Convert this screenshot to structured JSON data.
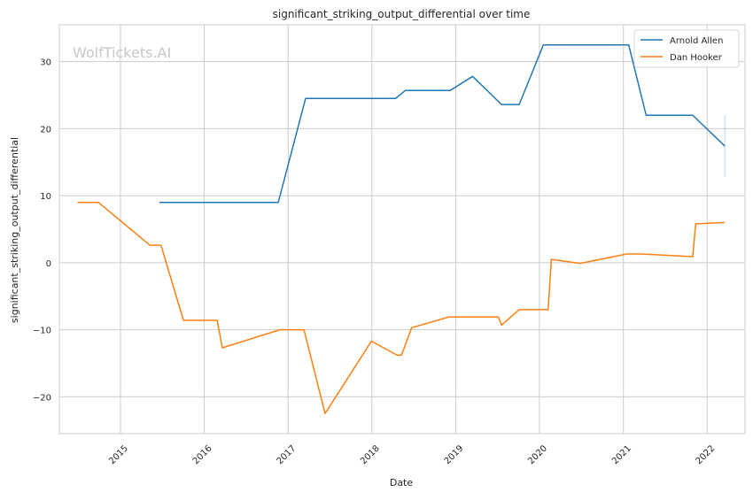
{
  "watermark": "WolfTickets.AI",
  "chart_data": {
    "type": "line",
    "title": "significant_striking_output_differential over time",
    "xlabel": "Date",
    "ylabel": "significant_striking_output_differential",
    "x_type": "date",
    "xlim": [
      "2014-04-10",
      "2022-06-15"
    ],
    "ylim": [
      -25.5,
      35.5
    ],
    "x_ticks": [
      "2015",
      "2016",
      "2017",
      "2018",
      "2019",
      "2020",
      "2021",
      "2022"
    ],
    "y_ticks": [
      -20,
      -10,
      0,
      10,
      20,
      30
    ],
    "grid": true,
    "legend": "top-right",
    "series": [
      {
        "name": "Arnold Allen",
        "color": "#1f77b4",
        "points": [
          [
            "2015-06-20",
            9.0
          ],
          [
            "2016-11-19",
            9.0
          ],
          [
            "2017-03-18",
            24.5
          ],
          [
            "2018-04-14",
            24.5
          ],
          [
            "2018-05-27",
            25.7
          ],
          [
            "2018-12-08",
            25.7
          ],
          [
            "2019-03-16",
            27.8
          ],
          [
            "2019-07-20",
            23.6
          ],
          [
            "2019-10-05",
            23.6
          ],
          [
            "2020-01-18",
            32.5
          ],
          [
            "2021-01-24",
            32.5
          ],
          [
            "2021-04-10",
            22.0
          ],
          [
            "2021-10-30",
            22.0
          ],
          [
            "2022-03-19",
            17.4
          ]
        ],
        "error_bar": {
          "x": "2022-03-19",
          "low": 12.8,
          "high": 22.0
        }
      },
      {
        "name": "Dan Hooker",
        "color": "#ff7f0e",
        "points": [
          [
            "2014-06-28",
            9.0
          ],
          [
            "2014-09-27",
            9.0
          ],
          [
            "2015-05-10",
            2.6
          ],
          [
            "2015-06-27",
            2.6
          ],
          [
            "2015-10-03",
            -8.6
          ],
          [
            "2016-02-27",
            -8.6
          ],
          [
            "2016-03-20",
            -12.7
          ],
          [
            "2016-11-26",
            -10.0
          ],
          [
            "2017-03-11",
            -10.0
          ],
          [
            "2017-06-11",
            -22.5
          ],
          [
            "2017-12-30",
            -11.7
          ],
          [
            "2018-04-21",
            -13.8
          ],
          [
            "2018-05-10",
            -13.8
          ],
          [
            "2018-06-23",
            -9.7
          ],
          [
            "2018-12-02",
            -8.1
          ],
          [
            "2019-07-06",
            -8.1
          ],
          [
            "2019-07-20",
            -9.3
          ],
          [
            "2019-10-05",
            -7.0
          ],
          [
            "2020-02-08",
            -7.0
          ],
          [
            "2020-02-22",
            0.5
          ],
          [
            "2020-06-27",
            -0.1
          ],
          [
            "2021-01-16",
            1.3
          ],
          [
            "2021-03-20",
            1.3
          ],
          [
            "2021-10-30",
            0.9
          ],
          [
            "2021-11-12",
            5.8
          ],
          [
            "2022-03-19",
            6.0
          ]
        ]
      }
    ]
  }
}
